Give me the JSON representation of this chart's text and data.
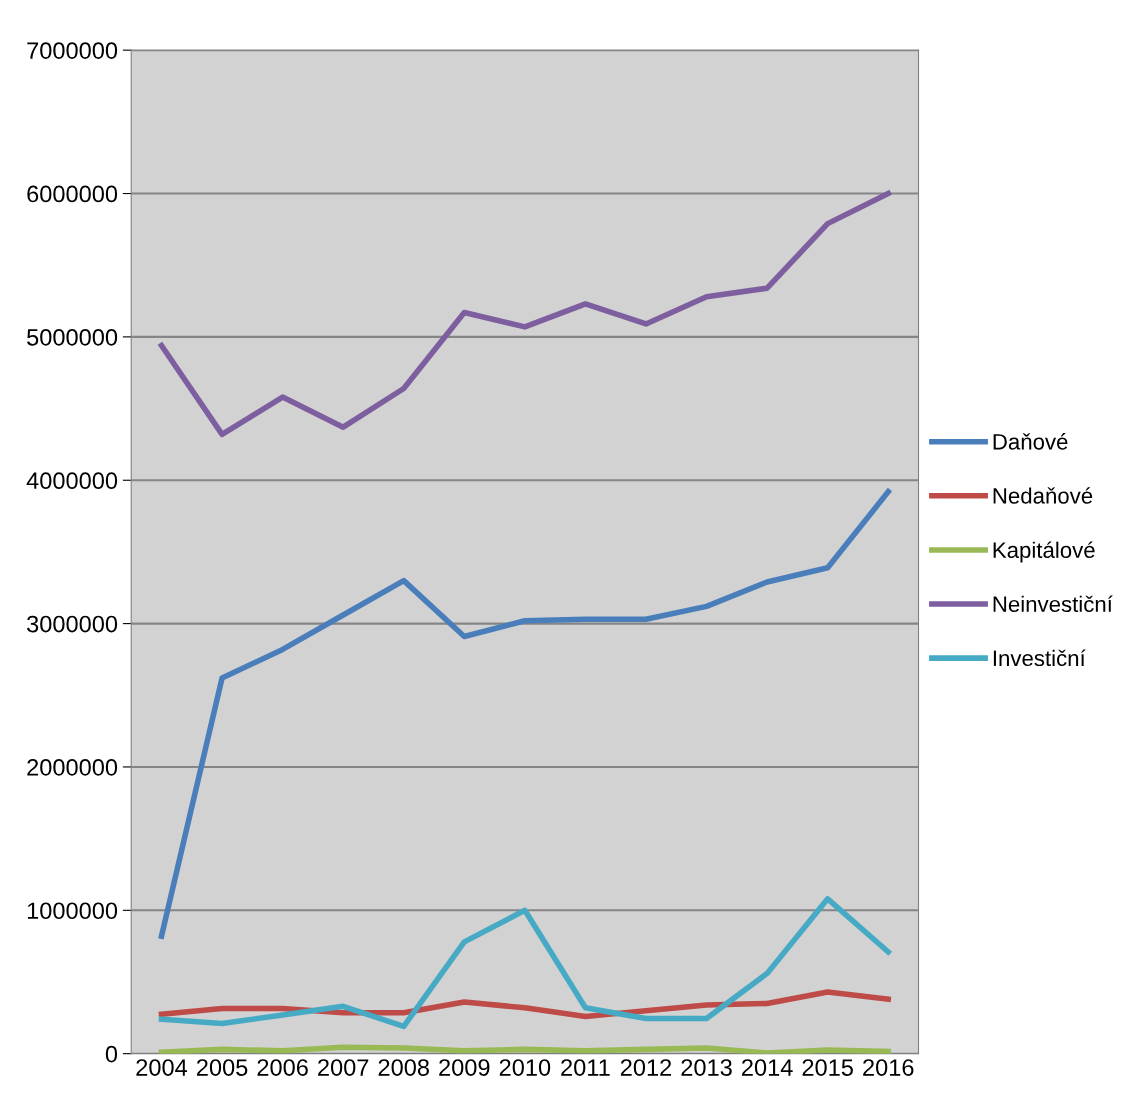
{
  "chart_data": {
    "type": "line",
    "categories": [
      "2004",
      "2005",
      "2006",
      "2007",
      "2008",
      "2009",
      "2010",
      "2011",
      "2012",
      "2013",
      "2014",
      "2015",
      "2016"
    ],
    "series": [
      {
        "name": "Daňové",
        "color": "#4a7ebb",
        "values": [
          820000,
          2620000,
          2820000,
          3060000,
          3300000,
          2910000,
          3020000,
          3030000,
          3030000,
          3120000,
          3290000,
          3390000,
          3920000
        ]
      },
      {
        "name": "Nedaňové",
        "color": "#be4b48",
        "values": [
          275000,
          315000,
          315000,
          285000,
          285000,
          360000,
          320000,
          260000,
          300000,
          340000,
          350000,
          430000,
          380000
        ]
      },
      {
        "name": "Kapitálové",
        "color": "#98b954",
        "values": [
          10000,
          30000,
          20000,
          45000,
          40000,
          20000,
          30000,
          20000,
          30000,
          40000,
          5000,
          25000,
          15000
        ]
      },
      {
        "name": "Neinvestiční",
        "color": "#7d5fa0",
        "values": [
          4940000,
          4320000,
          4580000,
          4370000,
          4640000,
          5170000,
          5070000,
          5230000,
          5090000,
          5280000,
          5340000,
          5790000,
          6000000
        ]
      },
      {
        "name": "Investiční",
        "color": "#46aac5",
        "values": [
          240000,
          210000,
          270000,
          330000,
          190000,
          780000,
          1000000,
          320000,
          245000,
          245000,
          560000,
          1080000,
          710000
        ]
      }
    ],
    "ylim": [
      0,
      7000000
    ],
    "yticks": [
      0,
      1000000,
      2000000,
      3000000,
      4000000,
      5000000,
      6000000,
      7000000
    ],
    "grid": "y",
    "legend": "right",
    "marker": "none",
    "line_style": "solid"
  }
}
